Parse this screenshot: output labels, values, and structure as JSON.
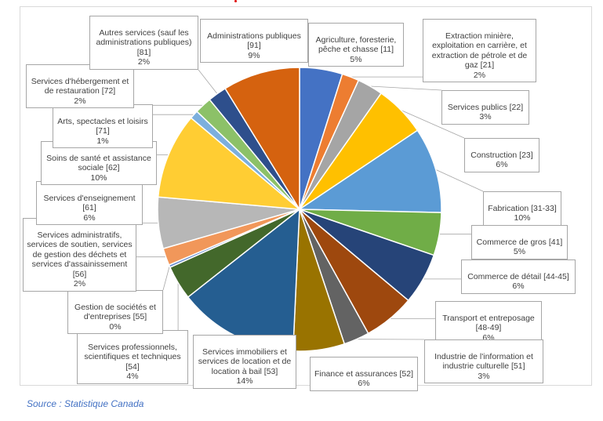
{
  "chart_data": {
    "type": "pie",
    "title": "",
    "slices": [
      {
        "label": "Agriculture, foresterie, pêche et chasse [11]",
        "percent": "5%",
        "value": 5,
        "color": "#4472c4"
      },
      {
        "label": "Extraction minière, exploitation en carrière, et extraction de pétrole et de gaz [21]",
        "percent": "2%",
        "value": 2,
        "color": "#ed7d31"
      },
      {
        "label": "Services publics [22]",
        "percent": "3%",
        "value": 3,
        "color": "#a5a5a5"
      },
      {
        "label": "Construction [23]",
        "percent": "6%",
        "value": 6,
        "color": "#ffc000"
      },
      {
        "label": "Fabrication [31-33]",
        "percent": "10%",
        "value": 10,
        "color": "#5b9bd5"
      },
      {
        "label": "Commerce de gros [41]",
        "percent": "5%",
        "value": 5,
        "color": "#70ad47"
      },
      {
        "label": "Commerce de détail [44-45]",
        "percent": "6%",
        "value": 6,
        "color": "#264478"
      },
      {
        "label": "Transport et entreposage [48-49]",
        "percent": "6%",
        "value": 6,
        "color": "#9e480e"
      },
      {
        "label": "Industrie de l'information et industrie culturelle [51]",
        "percent": "3%",
        "value": 3,
        "color": "#636363"
      },
      {
        "label": "Finance et assurances [52]",
        "percent": "6%",
        "value": 6,
        "color": "#997300"
      },
      {
        "label": "Services immobiliers et services de location et de location à bail [53]",
        "percent": "14%",
        "value": 14,
        "color": "#255e91"
      },
      {
        "label": "Services professionnels, scientifiques et techniques [54]",
        "percent": "4%",
        "value": 4,
        "color": "#43682b"
      },
      {
        "label": "Gestion de sociétés et d'entreprises [55]",
        "percent": "0%",
        "value": 0.3,
        "color": "#698ed0"
      },
      {
        "label": "Services administratifs, services de soutien, services de gestion des déchets et services d'assainissement [56]",
        "percent": "2%",
        "value": 2,
        "color": "#f1975a"
      },
      {
        "label": "Services d'enseignement [61]",
        "percent": "6%",
        "value": 6,
        "color": "#b7b7b7"
      },
      {
        "label": "Soins de santé et assistance sociale [62]",
        "percent": "10%",
        "value": 10,
        "color": "#ffcd33"
      },
      {
        "label": "Arts, spectacles et loisirs [71]",
        "percent": "1%",
        "value": 1,
        "color": "#7cafdd"
      },
      {
        "label": "Services d'hébergement et de restauration [72]",
        "percent": "2%",
        "value": 2,
        "color": "#8cc168"
      },
      {
        "label": "Autres services (sauf les administrations publiques) [81]",
        "percent": "2%",
        "value": 2.2,
        "color": "#2e4f8c"
      },
      {
        "label": "Administrations publiques [91]",
        "percent": "9%",
        "value": 9,
        "color": "#d5620f"
      }
    ]
  },
  "labels": {
    "agri": {
      "name": "Agriculture, foresterie,\npêche et chasse [11]",
      "pct": "5%"
    },
    "mine": {
      "name": "Extraction minière,\nexploitation en carrière, et\nextraction de pétrole et de\ngaz [21]",
      "pct": "2%"
    },
    "util": {
      "name": "Services publics [22]",
      "pct": "3%"
    },
    "cons": {
      "name": "Construction [23]",
      "pct": "6%"
    },
    "fabr": {
      "name": "Fabrication [31-33]",
      "pct": "10%"
    },
    "gros": {
      "name": "Commerce de gros [41]",
      "pct": "5%"
    },
    "detl": {
      "name": "Commerce de détail [44-45]",
      "pct": "6%"
    },
    "tran": {
      "name": "Transport et entreposage\n[48-49]",
      "pct": "6%"
    },
    "info": {
      "name": "Industrie de l'information et\nindustrie culturelle [51]",
      "pct": "3%"
    },
    "fina": {
      "name": "Finance et assurances [52]",
      "pct": "6%"
    },
    "immo": {
      "name": "Services immobiliers et\nservices de location et de\nlocation à bail [53]",
      "pct": "14%"
    },
    "prof": {
      "name": "Services professionnels,\nscientifiques et techniques\n[54]",
      "pct": "4%"
    },
    "gest": {
      "name": "Gestion de sociétés et\nd'entreprises [55]",
      "pct": "0%"
    },
    "admi": {
      "name": "Services administratifs,\nservices de soutien, services\nde gestion des déchets et\nservices d'assainissement\n[56]",
      "pct": "2%"
    },
    "ense": {
      "name": "Services d'enseignement\n[61]",
      "pct": "6%"
    },
    "sant": {
      "name": "Soins de santé et assistance\nsociale [62]",
      "pct": "10%"
    },
    "arts": {
      "name": "Arts, spectacles et loisirs\n[71]",
      "pct": "1%"
    },
    "hebe": {
      "name": "Services d'hébergement et\nde restauration [72]",
      "pct": "2%"
    },
    "autr": {
      "name": "Autres services (sauf les\nadministrations publiques)\n[81]",
      "pct": "2%"
    },
    "pubq": {
      "name": "Administrations publiques\n[91]",
      "pct": "9%"
    }
  },
  "source": "Source : Statistique Canada"
}
